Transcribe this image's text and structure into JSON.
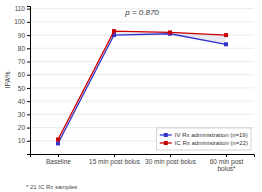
{
  "chart_data": {
    "type": "line",
    "categories": [
      "Baseline",
      "15 min post bolus",
      "30 min post bolus",
      "60 min post bolus*"
    ],
    "series": [
      {
        "name": "IV Rx administration (n=19)",
        "color": "#3333cc",
        "marker": "square",
        "values": [
          8,
          90,
          91,
          83
        ]
      },
      {
        "name": "IC Rx administration (n=22)",
        "color": "#cc0000",
        "marker": "square",
        "values": [
          11,
          93,
          92,
          90
        ]
      }
    ],
    "y_label": "IPA%",
    "ylim": [
      0,
      112
    ],
    "yticks": [
      10,
      20,
      30,
      40,
      50,
      60,
      70,
      80,
      90,
      100,
      110
    ],
    "grid": true,
    "legend": "lower right",
    "annotations": [
      "p = 0.870",
      "* 21 IC Rx samples"
    ]
  }
}
